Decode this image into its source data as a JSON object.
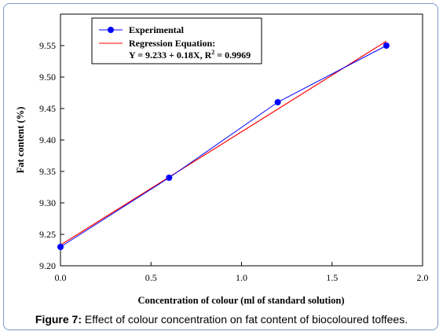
{
  "caption": {
    "label": "Figure 7:",
    "text": "Effect of colour concentration on fat content of biocoloured toffees."
  },
  "chart_data": {
    "type": "scatter",
    "title": "",
    "xlabel": "Concentration of colour (ml of standard solution)",
    "ylabel": "Fat content (%)",
    "xlim": [
      0.0,
      2.0
    ],
    "ylim": [
      9.2,
      9.6
    ],
    "x_ticks": [
      "0.0",
      "0.5",
      "1.0",
      "1.5",
      "2.0"
    ],
    "y_ticks": [
      "9.20",
      "9.25",
      "9.30",
      "9.35",
      "9.40",
      "9.45",
      "9.50",
      "9.55"
    ],
    "grid": false,
    "legend_position": "top-left",
    "series": [
      {
        "name": "Experimental",
        "kind": "line-markers",
        "color": "#0000ff",
        "x": [
          0.0,
          0.6,
          1.2,
          1.8
        ],
        "y": [
          9.23,
          9.34,
          9.46,
          9.55
        ]
      },
      {
        "name": "Regression Equation:",
        "equation_prefix": "Y = 9.233 + 0.18X, R",
        "equation_sup": "2",
        "equation_suffix": " = 0.9969",
        "kind": "line",
        "color": "#ff0000",
        "intercept": 9.233,
        "slope": 0.18,
        "x": [
          0.0,
          1.8
        ]
      }
    ]
  }
}
